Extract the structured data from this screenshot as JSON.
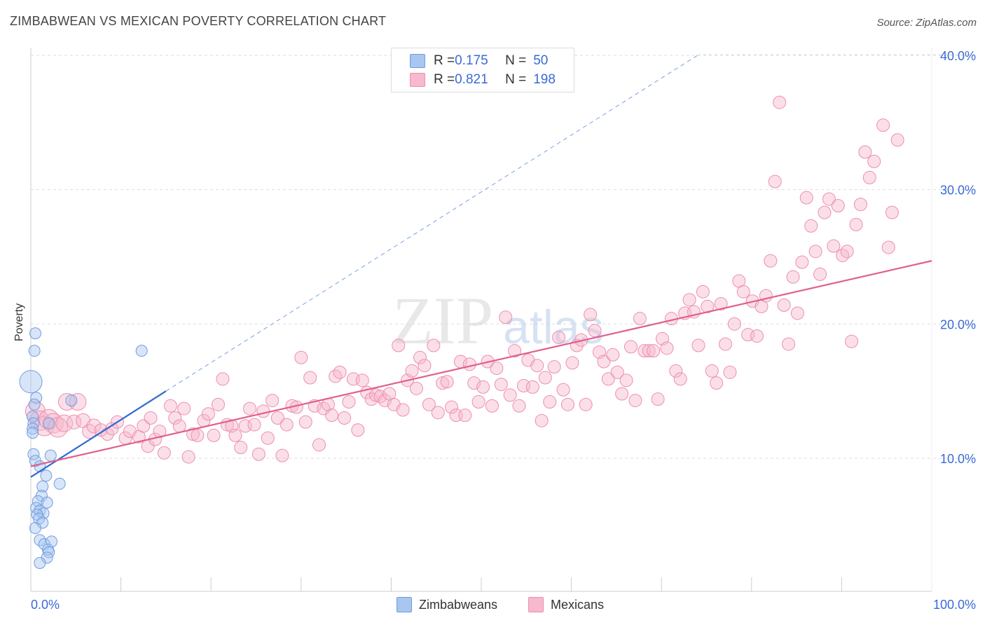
{
  "title": "ZIMBABWEAN VS MEXICAN POVERTY CORRELATION CHART",
  "source": "Source: ZipAtlas.com",
  "watermark": {
    "zip": "ZIP",
    "atlas": "atlas"
  },
  "legend": {
    "rows": [
      {
        "r_label": "R = ",
        "r_value": "0.175",
        "n_label": "N = ",
        "n_value": "50",
        "color": "#a8c6f0",
        "border": "#6f9be0"
      },
      {
        "r_label": "R = ",
        "r_value": "0.821",
        "n_label": "N = ",
        "n_value": "198",
        "color": "#f7b9cd",
        "border": "#ec8fae"
      }
    ]
  },
  "bottom_legend": [
    {
      "label": "Zimbabweans",
      "color": "#a8c6f0",
      "border": "#6f9be0"
    },
    {
      "label": "Mexicans",
      "color": "#f7b9cd",
      "border": "#ec8fae"
    }
  ],
  "chart_data": {
    "type": "scatter",
    "title": "ZIMBABWEAN VS MEXICAN POVERTY CORRELATION CHART",
    "xlabel": "",
    "ylabel": "Poverty",
    "xlim": [
      0,
      100
    ],
    "ylim": [
      0,
      41
    ],
    "x_ticks": [
      {
        "value": 0,
        "label": "0.0%"
      },
      {
        "value": 100,
        "label": "100.0%"
      }
    ],
    "y_ticks": [
      {
        "value": 10,
        "label": "10.0%"
      },
      {
        "value": 20,
        "label": "20.0%"
      },
      {
        "value": 30,
        "label": "30.0%"
      },
      {
        "value": 40,
        "label": "40.0%"
      }
    ],
    "grid": true,
    "series": [
      {
        "name": "Zimbabweans",
        "color": "#a8c6f0",
        "stroke": "#6f9be0",
        "trend": {
          "x": [
            0,
            15
          ],
          "y": [
            8.6,
            15.0
          ],
          "color": "#2f6ad0",
          "extended": {
            "x": [
              15,
              74
            ],
            "y": [
              15.0,
              40.0
            ]
          }
        },
        "points": [
          [
            0.0,
            15.7,
            16
          ],
          [
            0.5,
            19.3,
            8
          ],
          [
            0.4,
            18.0,
            8
          ],
          [
            12.3,
            18.0,
            8
          ],
          [
            0.6,
            14.5,
            8
          ],
          [
            0.4,
            14.0,
            8
          ],
          [
            4.5,
            14.3,
            8
          ],
          [
            0.2,
            13.1,
            8
          ],
          [
            0.3,
            12.6,
            8
          ],
          [
            0.2,
            12.2,
            8
          ],
          [
            0.2,
            11.9,
            8
          ],
          [
            2.0,
            12.6,
            8
          ],
          [
            0.3,
            10.3,
            8
          ],
          [
            2.2,
            10.2,
            8
          ],
          [
            0.5,
            9.8,
            8
          ],
          [
            1.0,
            9.4,
            8
          ],
          [
            1.7,
            8.7,
            8
          ],
          [
            3.2,
            8.1,
            8
          ],
          [
            1.3,
            7.9,
            8
          ],
          [
            1.2,
            7.2,
            8
          ],
          [
            0.8,
            6.8,
            8
          ],
          [
            1.8,
            6.7,
            8
          ],
          [
            0.6,
            6.3,
            8
          ],
          [
            1.0,
            6.1,
            8
          ],
          [
            1.4,
            5.9,
            8
          ],
          [
            0.7,
            5.8,
            8
          ],
          [
            0.9,
            5.5,
            8
          ],
          [
            1.3,
            5.2,
            8
          ],
          [
            0.5,
            4.8,
            8
          ],
          [
            1.0,
            3.9,
            8
          ],
          [
            1.5,
            3.6,
            8
          ],
          [
            2.3,
            3.8,
            8
          ],
          [
            1.9,
            3.2,
            8
          ],
          [
            2.0,
            3.0,
            8
          ],
          [
            1.8,
            2.6,
            8
          ],
          [
            1.0,
            2.2,
            8
          ]
        ]
      },
      {
        "name": "Mexicans",
        "color": "#f7b9cd",
        "stroke": "#ec8fae",
        "trend": {
          "x": [
            0,
            100
          ],
          "y": [
            9.4,
            24.7
          ],
          "color": "#e0608d"
        },
        "points": [
          [
            0.5,
            13.5,
            14
          ],
          [
            1.0,
            12.8,
            14
          ],
          [
            1.5,
            12.4,
            14
          ],
          [
            2.0,
            12.9,
            14
          ],
          [
            2.5,
            12.6,
            14
          ],
          [
            3.0,
            12.3,
            14
          ],
          [
            3.7,
            12.6,
            12
          ],
          [
            4.0,
            14.2,
            12
          ],
          [
            5.2,
            14.2,
            12
          ],
          [
            4.8,
            12.7,
            10
          ],
          [
            5.8,
            12.8,
            10
          ],
          [
            6.5,
            12.0,
            10
          ],
          [
            7.0,
            12.4,
            10
          ],
          [
            7.8,
            12.1,
            9
          ],
          [
            8.5,
            11.8,
            9
          ],
          [
            9.0,
            12.2,
            9
          ],
          [
            9.6,
            12.7,
            9
          ],
          [
            10.5,
            11.5,
            9
          ],
          [
            11.0,
            12.0,
            9
          ],
          [
            12.0,
            11.6,
            9
          ],
          [
            12.5,
            12.4,
            9
          ],
          [
            13.0,
            10.9,
            9
          ],
          [
            13.3,
            13.0,
            9
          ],
          [
            13.8,
            11.4,
            9
          ],
          [
            14.3,
            12.0,
            9
          ],
          [
            14.8,
            10.4,
            9
          ],
          [
            15.5,
            13.9,
            9
          ],
          [
            16.0,
            13.0,
            9
          ],
          [
            16.5,
            12.4,
            9
          ],
          [
            17.0,
            13.7,
            9
          ],
          [
            17.5,
            10.1,
            9
          ],
          [
            18.0,
            11.8,
            9
          ],
          [
            18.5,
            11.7,
            9
          ],
          [
            19.2,
            12.8,
            9
          ],
          [
            19.7,
            13.3,
            9
          ],
          [
            20.3,
            11.7,
            9
          ],
          [
            20.8,
            14.0,
            9
          ],
          [
            21.3,
            15.9,
            9
          ],
          [
            21.8,
            12.5,
            9
          ],
          [
            22.3,
            12.4,
            9
          ],
          [
            22.7,
            11.7,
            9
          ],
          [
            23.3,
            10.8,
            9
          ],
          [
            23.8,
            12.4,
            9
          ],
          [
            24.3,
            13.7,
            9
          ],
          [
            24.8,
            12.5,
            9
          ],
          [
            25.3,
            10.3,
            9
          ],
          [
            25.8,
            13.5,
            9
          ],
          [
            26.3,
            11.5,
            9
          ],
          [
            26.8,
            14.3,
            9
          ],
          [
            27.4,
            13.0,
            9
          ],
          [
            27.9,
            10.2,
            9
          ],
          [
            28.4,
            12.5,
            9
          ],
          [
            29.0,
            13.9,
            9
          ],
          [
            29.5,
            13.8,
            9
          ],
          [
            30.0,
            17.5,
            9
          ],
          [
            30.5,
            12.7,
            9
          ],
          [
            31.0,
            16.0,
            9
          ],
          [
            31.5,
            13.9,
            9
          ],
          [
            32.0,
            11.0,
            9
          ],
          [
            32.5,
            13.7,
            9
          ],
          [
            33.0,
            14.0,
            9
          ],
          [
            33.4,
            13.2,
            9
          ],
          [
            33.8,
            16.1,
            9
          ],
          [
            34.3,
            16.4,
            9
          ],
          [
            34.8,
            13.0,
            9
          ],
          [
            35.3,
            14.2,
            9
          ],
          [
            35.8,
            15.9,
            9
          ],
          [
            36.3,
            12.1,
            9
          ],
          [
            36.8,
            15.8,
            9
          ],
          [
            37.3,
            14.9,
            9
          ],
          [
            37.8,
            14.4,
            9
          ],
          [
            38.3,
            14.7,
            9
          ],
          [
            38.8,
            14.6,
            9
          ],
          [
            39.3,
            14.3,
            9
          ],
          [
            39.8,
            14.8,
            9
          ],
          [
            40.3,
            14.0,
            9
          ],
          [
            40.8,
            18.4,
            9
          ],
          [
            41.3,
            13.6,
            9
          ],
          [
            41.8,
            15.8,
            9
          ],
          [
            42.3,
            16.5,
            9
          ],
          [
            42.8,
            15.2,
            9
          ],
          [
            43.2,
            17.5,
            9
          ],
          [
            43.7,
            16.9,
            9
          ],
          [
            44.2,
            14.0,
            9
          ],
          [
            44.7,
            18.4,
            9
          ],
          [
            45.2,
            13.4,
            9
          ],
          [
            45.7,
            15.6,
            9
          ],
          [
            46.2,
            15.7,
            9
          ],
          [
            46.7,
            13.8,
            9
          ],
          [
            47.2,
            13.2,
            9
          ],
          [
            47.7,
            17.2,
            9
          ],
          [
            48.2,
            13.2,
            9
          ],
          [
            48.7,
            17.0,
            9
          ],
          [
            49.2,
            15.6,
            9
          ],
          [
            49.7,
            14.2,
            9
          ],
          [
            50.2,
            15.3,
            9
          ],
          [
            50.7,
            17.2,
            9
          ],
          [
            51.2,
            13.9,
            9
          ],
          [
            51.7,
            16.7,
            9
          ],
          [
            52.2,
            15.5,
            9
          ],
          [
            52.7,
            20.5,
            9
          ],
          [
            53.2,
            14.7,
            9
          ],
          [
            53.7,
            18.0,
            9
          ],
          [
            54.2,
            13.9,
            9
          ],
          [
            54.7,
            15.4,
            9
          ],
          [
            55.2,
            17.3,
            9
          ],
          [
            55.7,
            15.3,
            9
          ],
          [
            56.2,
            16.9,
            9
          ],
          [
            56.7,
            12.8,
            9
          ],
          [
            57.1,
            16.0,
            9
          ],
          [
            57.6,
            14.2,
            9
          ],
          [
            58.1,
            16.8,
            9
          ],
          [
            58.6,
            19.0,
            9
          ],
          [
            59.1,
            15.1,
            9
          ],
          [
            59.6,
            14.0,
            9
          ],
          [
            60.1,
            17.1,
            9
          ],
          [
            60.6,
            18.4,
            9
          ],
          [
            61.1,
            18.8,
            9
          ],
          [
            61.6,
            14.0,
            9
          ],
          [
            62.1,
            20.7,
            9
          ],
          [
            62.6,
            19.5,
            9
          ],
          [
            63.1,
            17.9,
            9
          ],
          [
            63.6,
            17.2,
            9
          ],
          [
            64.1,
            15.9,
            9
          ],
          [
            64.6,
            17.7,
            9
          ],
          [
            65.1,
            16.4,
            9
          ],
          [
            65.6,
            14.8,
            9
          ],
          [
            66.1,
            15.8,
            9
          ],
          [
            66.6,
            18.3,
            9
          ],
          [
            67.1,
            14.3,
            9
          ],
          [
            67.6,
            20.4,
            9
          ],
          [
            68.1,
            18.0,
            9
          ],
          [
            68.6,
            18.0,
            9
          ],
          [
            69.1,
            18.0,
            9
          ],
          [
            69.6,
            14.4,
            9
          ],
          [
            70.1,
            18.9,
            9
          ],
          [
            70.6,
            18.2,
            9
          ],
          [
            71.1,
            20.4,
            9
          ],
          [
            71.6,
            16.5,
            9
          ],
          [
            72.1,
            15.9,
            9
          ],
          [
            72.6,
            20.8,
            9
          ],
          [
            73.1,
            21.8,
            9
          ],
          [
            73.6,
            20.9,
            9
          ],
          [
            74.1,
            18.4,
            9
          ],
          [
            74.6,
            22.4,
            9
          ],
          [
            75.1,
            21.3,
            9
          ],
          [
            75.6,
            16.5,
            9
          ],
          [
            76.1,
            15.6,
            9
          ],
          [
            76.6,
            21.5,
            9
          ],
          [
            77.1,
            18.5,
            9
          ],
          [
            77.6,
            16.4,
            9
          ],
          [
            78.1,
            20.0,
            9
          ],
          [
            78.6,
            23.2,
            9
          ],
          [
            79.1,
            22.4,
            9
          ],
          [
            79.6,
            19.2,
            9
          ],
          [
            80.1,
            21.7,
            9
          ],
          [
            80.6,
            19.1,
            9
          ],
          [
            81.1,
            21.3,
            9
          ],
          [
            81.6,
            22.1,
            9
          ],
          [
            82.1,
            24.7,
            9
          ],
          [
            82.6,
            30.6,
            9
          ],
          [
            83.1,
            36.5,
            9
          ],
          [
            83.6,
            21.4,
            9
          ],
          [
            84.1,
            18.5,
            9
          ],
          [
            84.6,
            23.5,
            9
          ],
          [
            85.1,
            20.8,
            9
          ],
          [
            85.6,
            24.6,
            9
          ],
          [
            86.1,
            29.4,
            9
          ],
          [
            86.6,
            27.3,
            9
          ],
          [
            87.1,
            25.4,
            9
          ],
          [
            87.6,
            23.7,
            9
          ],
          [
            88.1,
            28.3,
            9
          ],
          [
            88.6,
            29.3,
            9
          ],
          [
            89.1,
            25.8,
            9
          ],
          [
            89.6,
            28.8,
            9
          ],
          [
            90.1,
            25.1,
            9
          ],
          [
            90.6,
            25.4,
            9
          ],
          [
            91.1,
            18.7,
            9
          ],
          [
            91.6,
            27.4,
            9
          ],
          [
            92.1,
            28.9,
            9
          ],
          [
            92.6,
            32.8,
            9
          ],
          [
            93.1,
            30.9,
            9
          ],
          [
            93.6,
            32.1,
            9
          ],
          [
            94.6,
            34.8,
            9
          ],
          [
            95.6,
            28.3,
            9
          ],
          [
            96.2,
            33.7,
            9
          ],
          [
            95.2,
            25.7,
            9
          ]
        ]
      }
    ]
  }
}
